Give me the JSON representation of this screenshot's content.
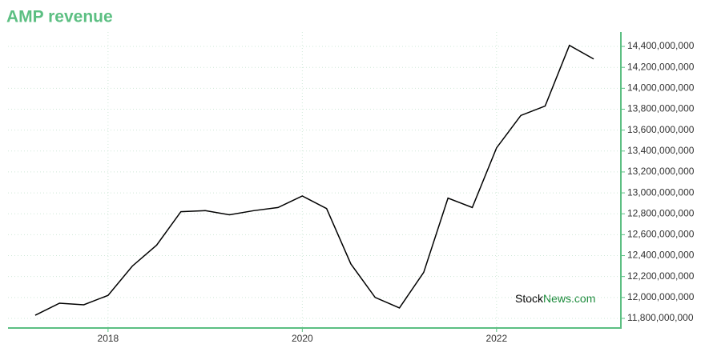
{
  "chart_data": {
    "type": "line",
    "title": "AMP revenue",
    "watermark": {
      "part1": "Stock",
      "part2": "News.com"
    },
    "x": [
      2017.25,
      2017.5,
      2017.75,
      2018,
      2018.25,
      2018.5,
      2018.75,
      2019,
      2019.25,
      2019.5,
      2019.75,
      2020,
      2020.25,
      2020.5,
      2020.75,
      2021,
      2021.25,
      2021.5,
      2021.75,
      2022,
      2022.25,
      2022.5,
      2022.75,
      2023
    ],
    "series": [
      {
        "name": "Revenue",
        "color": "#000000",
        "values": [
          11830000000,
          11945000000,
          11930000000,
          12020000000,
          12300000000,
          12500000000,
          12820000000,
          12830000000,
          12790000000,
          12830000000,
          12860000000,
          12970000000,
          12850000000,
          12320000000,
          12000000000,
          11900000000,
          12240000000,
          12950000000,
          12860000000,
          13430000000,
          13740000000,
          13830000000,
          14410000000,
          14280000000
        ]
      }
    ],
    "xlim": [
      2016.97,
      2023.28
    ],
    "xticks": [
      2018,
      2020,
      2022
    ],
    "ylim": [
      11708000000,
      14538000000
    ],
    "yticks": [
      {
        "value": 11800000000,
        "label": "11,800,000,000"
      },
      {
        "value": 12000000000,
        "label": "12,000,000,000"
      },
      {
        "value": 12200000000,
        "label": "12,200,000,000"
      },
      {
        "value": 12400000000,
        "label": "12,400,000,000"
      },
      {
        "value": 12600000000,
        "label": "12,600,000,000"
      },
      {
        "value": 12800000000,
        "label": "12,800,000,000"
      },
      {
        "value": 13000000000,
        "label": "13,000,000,000"
      },
      {
        "value": 13200000000,
        "label": "13,200,000,000"
      },
      {
        "value": 13400000000,
        "label": "13,400,000,000"
      },
      {
        "value": 13600000000,
        "label": "13,600,000,000"
      },
      {
        "value": 13800000000,
        "label": "13,800,000,000"
      },
      {
        "value": 14000000000,
        "label": "14,000,000,000"
      },
      {
        "value": 14200000000,
        "label": "14,200,000,000"
      },
      {
        "value": 14400000000,
        "label": "14,400,000,000"
      }
    ],
    "grid": true,
    "axis_color": "#5cbf82"
  }
}
